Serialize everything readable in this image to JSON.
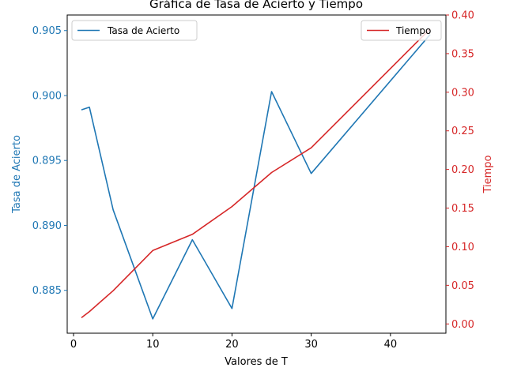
{
  "chart_data": {
    "type": "line",
    "title": "Gráfica de Tasa de Acierto y Tiempo",
    "xlabel": "Valores de T",
    "ylabel_left": "Tasa de Acierto",
    "ylabel_right": "Tiempo",
    "xlim": [
      -0.8,
      47.0
    ],
    "ylim_left": [
      0.8817,
      0.9062
    ],
    "ylim_right": [
      -0.012,
      0.4
    ],
    "xticks": [
      0,
      10,
      20,
      30,
      40
    ],
    "yticks_left": [
      0.885,
      0.89,
      0.895,
      0.9,
      0.905
    ],
    "yticks_left_labels": [
      "0.885",
      "0.890",
      "0.895",
      "0.900",
      "0.905"
    ],
    "yticks_right": [
      0.0,
      0.05,
      0.1,
      0.15,
      0.2,
      0.25,
      0.3,
      0.35,
      0.4
    ],
    "yticks_right_labels": [
      "0.00",
      "0.05",
      "0.10",
      "0.15",
      "0.20",
      "0.25",
      "0.30",
      "0.35",
      "0.40"
    ],
    "series": [
      {
        "name": "Tasa de Acierto",
        "axis": "left",
        "color": "#1f77b4",
        "x": [
          1,
          2,
          5,
          10,
          15,
          20,
          25,
          30,
          45
        ],
        "values": [
          0.8989,
          0.8991,
          0.8912,
          0.8828,
          0.8889,
          0.8836,
          0.9003,
          0.894,
          0.9047
        ]
      },
      {
        "name": "Tiempo",
        "axis": "right",
        "color": "#d62728",
        "x": [
          1,
          2,
          5,
          10,
          15,
          20,
          25,
          30,
          45
        ],
        "values": [
          0.008,
          0.016,
          0.043,
          0.095,
          0.116,
          0.152,
          0.196,
          0.228,
          0.382
        ]
      }
    ],
    "legend_left_position": "upper-left",
    "legend_right_position": "upper-right",
    "grid": false
  }
}
